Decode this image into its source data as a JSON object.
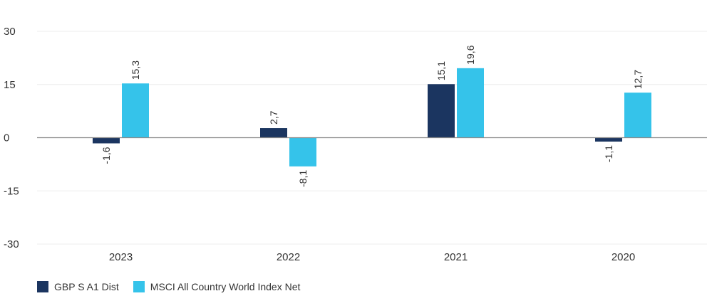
{
  "chart_data": {
    "type": "bar",
    "categories": [
      "2023",
      "2022",
      "2021",
      "2020"
    ],
    "series": [
      {
        "name": "GBP S A1 Dist",
        "values": [
          -1.6,
          2.7,
          15.1,
          -1.1
        ],
        "labels": [
          "-1,6",
          "2,7",
          "15,1",
          "-1,1"
        ],
        "color": "#1b3560"
      },
      {
        "name": "MSCI All Country World Index Net",
        "values": [
          15.3,
          -8.1,
          19.6,
          12.7
        ],
        "labels": [
          "15,3",
          "-8,1",
          "19,6",
          "12,7"
        ],
        "color": "#35c3ea"
      }
    ],
    "ylim": [
      -30,
      30
    ],
    "yticks": [
      30,
      15,
      0,
      -15,
      -30
    ],
    "ytick_labels": [
      "30",
      "15",
      "0",
      "-15",
      "-30"
    ],
    "grid": true,
    "legend": "bottom-left"
  }
}
